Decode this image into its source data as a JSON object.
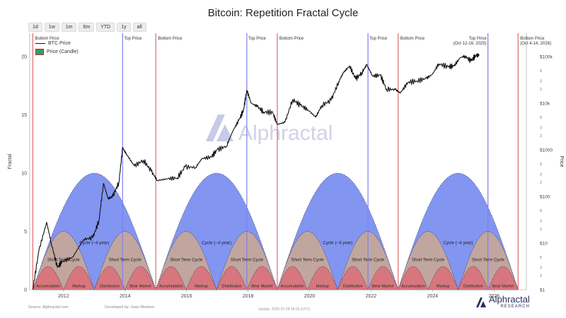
{
  "page": {
    "title": "Bitcoin: Repetition Fractal Cycle",
    "range_buttons": [
      "1d",
      "1w",
      "1m",
      "6m",
      "YTD",
      "1y",
      "all"
    ],
    "legend": {
      "btc_price": "BTC Price",
      "candle": "Price (Candle)"
    },
    "watermark": "Alphractal",
    "footer": {
      "source": "Source: Alphractal.com",
      "developer": "Developed by: Joao Wedson",
      "update": "Update: 2025-07-08 18:00 (UTC)"
    },
    "brand": {
      "name": "Alphractal",
      "sub": "RESEARCH"
    }
  },
  "chart_data": {
    "type": "line",
    "title": "Bitcoin: Repetition Fractal Cycle",
    "ylabel": "Fractal",
    "y2label": "Price",
    "xlim": [
      2010.9,
      2027.05
    ],
    "ylim": [
      0,
      22
    ],
    "x_ticks": [
      2012,
      2014,
      2016,
      2018,
      2020,
      2022,
      2024,
      2026
    ],
    "y_ticks": [
      0,
      5,
      10,
      15,
      20
    ],
    "price_scale": "log",
    "price_ticks": [
      {
        "price": 1,
        "label": "$1"
      },
      {
        "price": 10,
        "label": "$10"
      },
      {
        "price": 100,
        "label": "$100"
      },
      {
        "price": 1000,
        "label": "$1000"
      },
      {
        "price": 10000,
        "label": "$10k"
      },
      {
        "price": 100000,
        "label": "$100k"
      }
    ],
    "price_minor_labels": [
      "2",
      "3",
      "5"
    ],
    "btc_price": [
      [
        2011.0,
        1
      ],
      [
        2011.2,
        7
      ],
      [
        2011.45,
        28
      ],
      [
        2011.6,
        10
      ],
      [
        2011.8,
        3
      ],
      [
        2011.95,
        4
      ],
      [
        2012.3,
        5
      ],
      [
        2012.65,
        12
      ],
      [
        2012.95,
        13
      ],
      [
        2013.15,
        30
      ],
      [
        2013.3,
        190
      ],
      [
        2013.45,
        90
      ],
      [
        2013.6,
        100
      ],
      [
        2013.8,
        200
      ],
      [
        2013.92,
        1100
      ],
      [
        2014.05,
        800
      ],
      [
        2014.3,
        450
      ],
      [
        2014.6,
        600
      ],
      [
        2014.85,
        350
      ],
      [
        2015.05,
        220
      ],
      [
        2015.4,
        240
      ],
      [
        2015.7,
        250
      ],
      [
        2015.95,
        430
      ],
      [
        2016.3,
        420
      ],
      [
        2016.5,
        650
      ],
      [
        2016.8,
        700
      ],
      [
        2017.0,
        1000
      ],
      [
        2017.3,
        1200
      ],
      [
        2017.5,
        2500
      ],
      [
        2017.7,
        4300
      ],
      [
        2017.85,
        7000
      ],
      [
        2017.96,
        19000
      ],
      [
        2018.1,
        10000
      ],
      [
        2018.3,
        8500
      ],
      [
        2018.5,
        6500
      ],
      [
        2018.8,
        6300
      ],
      [
        2018.95,
        3500
      ],
      [
        2019.2,
        3900
      ],
      [
        2019.45,
        12000
      ],
      [
        2019.7,
        9000
      ],
      [
        2019.95,
        7200
      ],
      [
        2020.2,
        5000
      ],
      [
        2020.4,
        9000
      ],
      [
        2020.7,
        11500
      ],
      [
        2020.95,
        29000
      ],
      [
        2021.1,
        45000
      ],
      [
        2021.3,
        63000
      ],
      [
        2021.5,
        33000
      ],
      [
        2021.7,
        45000
      ],
      [
        2021.86,
        67000
      ],
      [
        2022.05,
        38000
      ],
      [
        2022.3,
        40000
      ],
      [
        2022.5,
        20000
      ],
      [
        2022.8,
        19500
      ],
      [
        2022.95,
        16500
      ],
      [
        2023.2,
        28000
      ],
      [
        2023.5,
        30000
      ],
      [
        2023.8,
        34000
      ],
      [
        2024.0,
        42000
      ],
      [
        2024.2,
        70000
      ],
      [
        2024.5,
        60000
      ],
      [
        2024.7,
        63000
      ],
      [
        2024.9,
        95000
      ],
      [
        2025.05,
        102000
      ],
      [
        2025.25,
        80000
      ],
      [
        2025.4,
        105000
      ],
      [
        2025.52,
        108000
      ]
    ],
    "top_lines": [
      {
        "x": 2013.92,
        "label": "Top Price"
      },
      {
        "x": 2017.96,
        "label": "Top Price"
      },
      {
        "x": 2021.9,
        "label": "Top Price"
      },
      {
        "x": 2025.8,
        "label": "Top Price",
        "note": "(Oct 12-16, 2025)"
      }
    ],
    "bottom_lines": [
      {
        "x": 2011.0,
        "label": "Bottom Price"
      },
      {
        "x": 2015.0,
        "label": "Bottom Price"
      },
      {
        "x": 2018.95,
        "label": "Bottom Price"
      },
      {
        "x": 2022.88,
        "label": "Bottom Price"
      },
      {
        "x": 2026.78,
        "label": "Bottom Price",
        "note": "(Oct 4-14, 2026)"
      }
    ],
    "cycles": [
      {
        "start": 2011.0,
        "end": 2015.0,
        "label": "Cycle (~4 year)"
      },
      {
        "start": 2015.0,
        "end": 2018.95,
        "label": "Cycle (~4 year)"
      },
      {
        "start": 2018.95,
        "end": 2022.88,
        "label": "Cycle (~4 year)"
      },
      {
        "start": 2022.88,
        "end": 2026.78,
        "label": "Cycle (~4 year)"
      }
    ],
    "cycle_peak": 10,
    "short_cycle_peak": 5,
    "phase_peak": 2,
    "short_cycle_label": "Short Term Cycle",
    "phases": [
      "Accumulation",
      "Markup",
      "Distribution",
      "Bear Market"
    ],
    "colors": {
      "cycle": "#7b8ff0",
      "short_cycle": "#c4a79a",
      "phase": "#d9737b",
      "top_line": "#7a80f0",
      "bottom_line": "#e06a6a",
      "price": "#111111"
    }
  }
}
